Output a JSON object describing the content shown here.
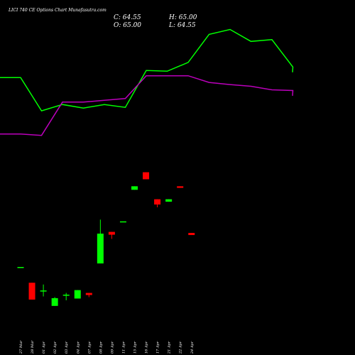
{
  "chart_data": {
    "type": "candlestick",
    "title": "LICI 740 CE Options Chart Munafasutra.com",
    "ohlc_readout": {
      "close": "C: 64.55",
      "open": "O: 65.00",
      "high": "H: 65.00",
      "low": "L: 64.55"
    },
    "x_labels": [
      "27 Mar",
      "28 Mar",
      "01 Apr",
      "02 Apr",
      "03 Apr",
      "04 Apr",
      "07 Apr",
      "08 Apr",
      "09 Apr",
      "11 Apr",
      "15 Apr",
      "16 Apr",
      "17 Apr",
      "21 Apr",
      "22 Apr",
      "24 Apr"
    ],
    "price_range": [
      25,
      110
    ],
    "candles": [
      {
        "date": "27 Mar",
        "open": 42.0,
        "high": 42.0,
        "low": 42.0,
        "close": 42.0
      },
      {
        "date": "28 Mar",
        "open": 37.5,
        "high": 37.5,
        "low": 32.7,
        "close": 32.7
      },
      {
        "date": "01 Apr",
        "open": 35.1,
        "high": 37.0,
        "low": 33.6,
        "close": 35.3
      },
      {
        "date": "02 Apr",
        "open": 30.9,
        "high": 33.4,
        "low": 30.9,
        "close": 33.1
      },
      {
        "date": "03 Apr",
        "open": 34.0,
        "high": 34.6,
        "low": 32.5,
        "close": 34.1
      },
      {
        "date": "04 Apr",
        "open": 33.0,
        "high": 35.4,
        "low": 33.0,
        "close": 35.4
      },
      {
        "date": "07 Apr",
        "open": 34.6,
        "high": 34.6,
        "low": 33.4,
        "close": 34.0
      },
      {
        "date": "08 Apr",
        "open": 43.0,
        "high": 55.5,
        "low": 43.0,
        "close": 51.5
      },
      {
        "date": "09 Apr",
        "open": 52.0,
        "high": 52.0,
        "low": 50.0,
        "close": 51.2
      },
      {
        "date": "11 Apr",
        "open": 55.0,
        "high": 55.0,
        "low": 55.0,
        "close": 55.0
      },
      {
        "date": "15 Apr",
        "open": 64.0,
        "high": 65.0,
        "low": 64.0,
        "close": 65.0
      },
      {
        "date": "16 Apr",
        "open": 69.0,
        "high": 69.0,
        "low": 67.0,
        "close": 67.0
      },
      {
        "date": "17 Apr",
        "open": 61.3,
        "high": 61.3,
        "low": 59.0,
        "close": 59.8
      },
      {
        "date": "21 Apr",
        "open": 60.6,
        "high": 61.3,
        "low": 60.6,
        "close": 61.3
      },
      {
        "date": "22 Apr",
        "open": 65.0,
        "high": 65.0,
        "low": 64.55,
        "close": 64.55
      },
      {
        "date": "24 Apr",
        "open": 51.7,
        "high": 51.7,
        "low": 51.1,
        "close": 51.1
      }
    ],
    "upper_band": [
      96.0,
      96.0,
      86.5,
      88.3,
      87.3,
      88.3,
      87.5,
      98.0,
      97.8,
      100.3,
      108.3,
      109.7,
      106.3,
      106.8,
      99.0
    ],
    "lower_band": [
      79.9,
      79.9,
      79.5,
      89.0,
      89.0,
      89.5,
      90.0,
      96.5,
      96.5,
      96.5,
      94.6,
      94.0,
      93.5,
      92.5,
      92.3
    ],
    "colors": {
      "background": "#000000",
      "up": "#00ff00",
      "down": "#ff0000",
      "upper_band": "#00ff00",
      "lower_band": "#bb00bb",
      "text": "#ffffff"
    }
  }
}
